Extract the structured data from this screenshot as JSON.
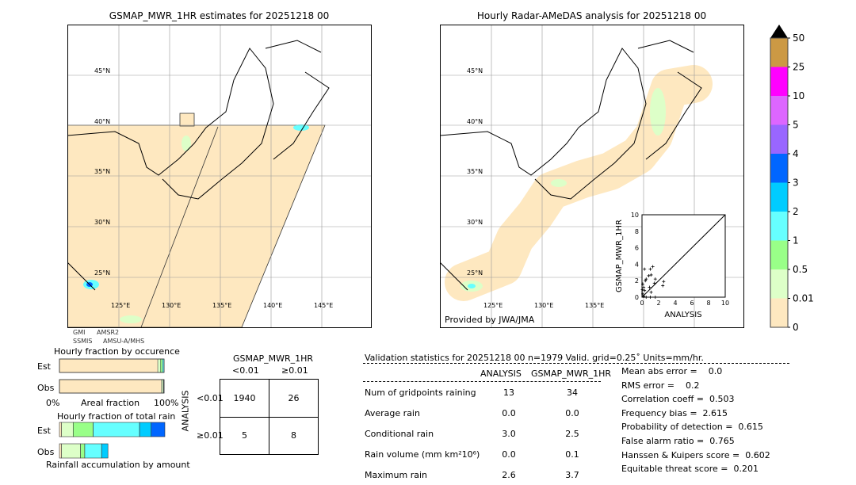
{
  "left_map": {
    "title": "GSMAP_MWR_1HR estimates for 20251218 00",
    "lat_labels": [
      "45°N",
      "40°N",
      "35°N",
      "30°N",
      "25°N"
    ],
    "lon_labels": [
      "125°E",
      "130°E",
      "135°E",
      "140°E",
      "145°E"
    ],
    "sensor_labels": [
      "GMI",
      "SSMIS",
      "AMSR2",
      "AMSU-A/MHS"
    ]
  },
  "right_map": {
    "title": "Hourly Radar-AMeDAS analysis for 20251218 00",
    "lat_labels": [
      "45°N",
      "40°N",
      "35°N",
      "30°N",
      "25°N"
    ],
    "lon_labels": [
      "125°E",
      "130°E",
      "135°E"
    ],
    "credit": "Provided by JWA/JMA"
  },
  "colorbar": {
    "ticks": [
      "0",
      "0.01",
      "0.5",
      "1",
      "2",
      "3",
      "4",
      "5",
      "10",
      "25",
      "50"
    ],
    "colors": [
      "#fee8c0",
      "#ddffc8",
      "#99ff88",
      "#66ffff",
      "#00ccff",
      "#0066ff",
      "#9966ff",
      "#dd66ff",
      "#ff00ff",
      "#cc9944"
    ],
    "extend": "max"
  },
  "chart_data": [
    {
      "type": "scatter",
      "xlabel": "ANALYSIS",
      "ylabel": "GSMAP_MWR_1HR",
      "xlim": [
        0,
        10
      ],
      "ylim": [
        0,
        10
      ],
      "ticks": [
        "0",
        "2",
        "4",
        "6",
        "8",
        "10"
      ],
      "points": [
        [
          0.3,
          3.4
        ],
        [
          1.0,
          3.4
        ],
        [
          1.3,
          3.7
        ],
        [
          0.8,
          2.6
        ],
        [
          1.1,
          2.7
        ],
        [
          0.5,
          2.2
        ],
        [
          0.4,
          2.0
        ],
        [
          1.6,
          2.2
        ],
        [
          2.5,
          1.4
        ],
        [
          2.6,
          1.9
        ],
        [
          0.1,
          1.6
        ],
        [
          0.2,
          1.2
        ],
        [
          0.3,
          0.8
        ],
        [
          0.9,
          1.2
        ],
        [
          1.1,
          0.6
        ],
        [
          1.5,
          1.7
        ],
        [
          0.1,
          0.4
        ],
        [
          0.2,
          0.1
        ],
        [
          0.5,
          0.0
        ],
        [
          1.0,
          0.0
        ],
        [
          1.6,
          0.0
        ],
        [
          0.05,
          0.9
        ]
      ]
    },
    {
      "type": "bar",
      "title": "Hourly fraction by occurence",
      "xlabel": "Areal fraction",
      "x_ticks": [
        "0%",
        "100%"
      ],
      "categories": [
        "Est",
        "Obs"
      ],
      "series": [
        {
          "values": [
            0.94,
            0.975
          ]
        },
        {
          "values": [
            0.025,
            0.015
          ]
        },
        {
          "values": [
            0.02,
            0.005
          ]
        },
        {
          "values": [
            0.015,
            0.005
          ]
        }
      ]
    },
    {
      "type": "bar",
      "title": "Hourly fraction of total rain",
      "xlabel": "Rainfall accumulation by amount",
      "categories": [
        "Est",
        "Obs"
      ],
      "est": [
        0.02,
        0.11,
        0.19,
        0.44,
        0.11,
        0.13
      ],
      "obs": [
        0.02,
        0.18,
        0.04,
        0.16,
        0.06,
        0
      ]
    }
  ],
  "contingency": {
    "title": "GSMAP_MWR_1HR",
    "col_labels": [
      "<0.01",
      "≥0.01"
    ],
    "row_title": "ANALYSIS",
    "row_labels": [
      "<0.01",
      "≥0.01"
    ],
    "cells": [
      [
        "1940",
        "26"
      ],
      [
        "5",
        "8"
      ]
    ]
  },
  "stats": {
    "header": "Validation statistics for 20251218 00  n=1979 Valid. grid=0.25˚ Units=mm/hr.",
    "col1": "ANALYSIS",
    "col2": "GSMAP_MWR_1HR",
    "rows": [
      {
        "label": "Num of gridpoints raining",
        "a": "13",
        "b": "34"
      },
      {
        "label": "Average rain",
        "a": "0.0",
        "b": "0.0"
      },
      {
        "label": "Conditional rain",
        "a": "3.0",
        "b": "2.5"
      },
      {
        "label": "Rain volume (mm km²10⁶)",
        "a": "0.0",
        "b": "0.1"
      },
      {
        "label": "Maximum rain",
        "a": "2.6",
        "b": "3.7"
      }
    ],
    "scores": [
      "Mean abs error =    0.0",
      "RMS error =    0.2",
      "Correlation coeff =  0.503",
      "Frequency bias =  2.615",
      "Probability of detection =  0.615",
      "False alarm ratio =  0.765",
      "Hanssen & Kuipers score =  0.602",
      "Equitable threat score =  0.201"
    ]
  }
}
